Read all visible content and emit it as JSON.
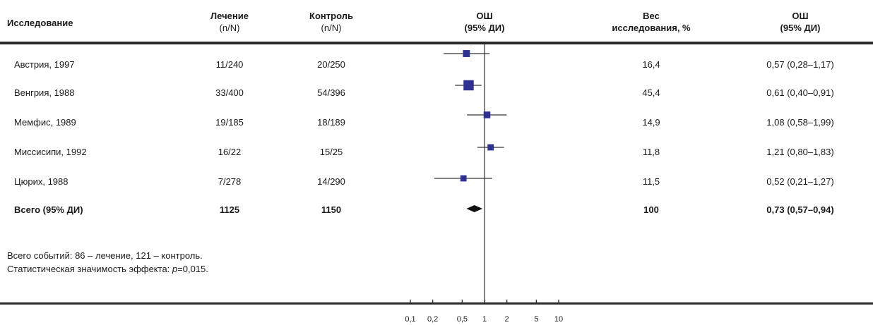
{
  "headers": {
    "study": "Исследование",
    "treatment": "Лечение",
    "treatment_sub": "(n/N)",
    "control": "Контроль",
    "control_sub": "(n/N)",
    "or_plot": "ОШ",
    "or_plot_sub": "(95% ДИ)",
    "weight": "Вес",
    "weight_sub": "исследования, %",
    "or_col": "ОШ",
    "or_col_sub": "(95% ДИ)"
  },
  "rows": [
    {
      "study": "Австрия, 1997",
      "treatment": "11/240",
      "control": "20/250",
      "weight": "16,4",
      "or_text": "0,57 (0,28–1,17)"
    },
    {
      "study": "Венгрия, 1988",
      "treatment": "33/400",
      "control": "54/396",
      "weight": "45,4",
      "or_text": "0,61 (0,40–0,91)"
    },
    {
      "study": "Мемфис, 1989",
      "treatment": "19/185",
      "control": "18/189",
      "weight": "14,9",
      "or_text": "1,08 (0,58–1,99)"
    },
    {
      "study": "Миссисипи, 1992",
      "treatment": "16/22",
      "control": "15/25",
      "weight": "11,8",
      "or_text": "1,21 (0,80–1,83)"
    },
    {
      "study": "Цюрих, 1988",
      "treatment": "7/278",
      "control": "14/290",
      "weight": "11,5",
      "or_text": "0,52 (0,21–1,27)"
    }
  ],
  "total": {
    "study": "Всего (95% ДИ)",
    "treatment": "1125",
    "control": "1150",
    "weight": "100",
    "or_text": "0,73 (0,57–0,94)"
  },
  "notes": {
    "events": "Всего событий: 86 – лечение, 121 – контроль.",
    "significance_prefix": "Статистическая значимость эффекта: ",
    "significance_p": "p",
    "significance_value": "=0,015."
  },
  "chart_data": {
    "type": "forest",
    "x_scale": "log",
    "reference_line": 1,
    "xticks": [
      0.1,
      0.2,
      0.5,
      1,
      2,
      5,
      10
    ],
    "xtick_labels": [
      "0,1",
      "0,2",
      "0,5",
      "1",
      "2",
      "5",
      "10"
    ],
    "marker_color": "#2e3192",
    "studies": [
      {
        "name": "Австрия, 1997",
        "or": 0.57,
        "ci": [
          0.28,
          1.17
        ],
        "weight": 16.4
      },
      {
        "name": "Венгрия, 1988",
        "or": 0.61,
        "ci": [
          0.4,
          0.91
        ],
        "weight": 45.4
      },
      {
        "name": "Мемфис, 1989",
        "or": 1.08,
        "ci": [
          0.58,
          1.99
        ],
        "weight": 14.9
      },
      {
        "name": "Миссисипи, 1992",
        "or": 1.21,
        "ci": [
          0.8,
          1.83
        ],
        "weight": 11.8
      },
      {
        "name": "Цюрих, 1988",
        "or": 0.52,
        "ci": [
          0.21,
          1.27
        ],
        "weight": 11.5
      }
    ],
    "pooled": {
      "name": "Всего (95% ДИ)",
      "or": 0.73,
      "ci": [
        0.57,
        0.94
      ]
    }
  }
}
